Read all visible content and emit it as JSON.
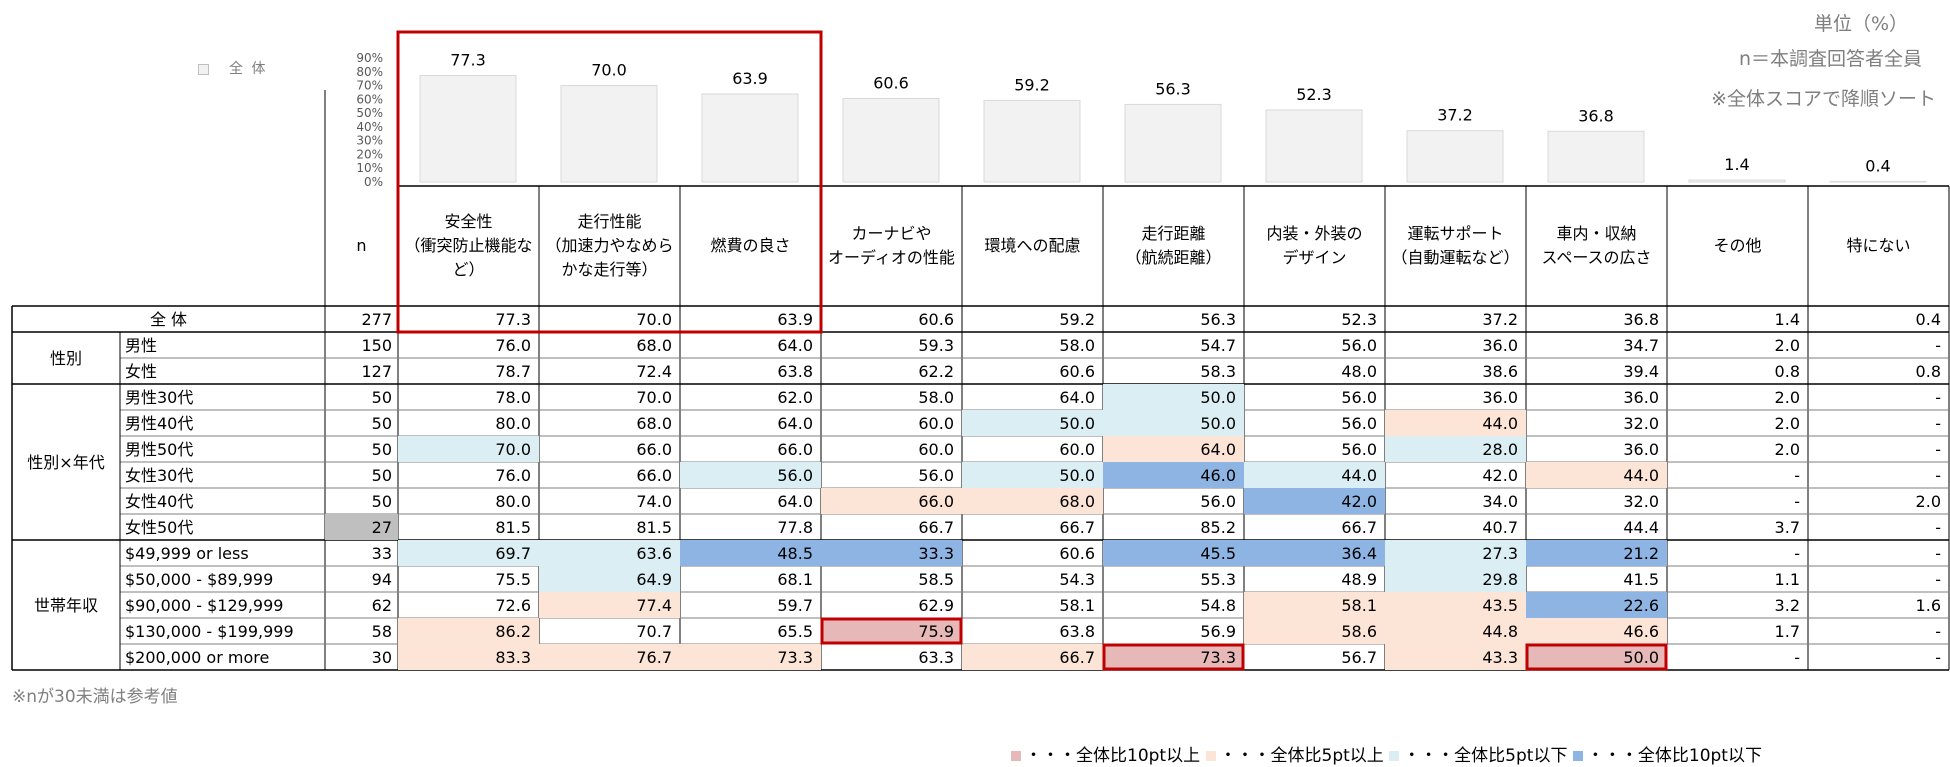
{
  "header": {
    "legend_all": "全 体",
    "unit": "単位（%）",
    "base": "n＝本調査回答者全員",
    "sort_note": "※全体スコアで降順ソート"
  },
  "footer": {
    "note": "※nが30未満は参考値",
    "legend": [
      {
        "label": "・・・全体比10pt以上",
        "color": "#e6b8b7"
      },
      {
        "label": "・・・全体比5pt以上",
        "color": "#fce4d6"
      },
      {
        "label": "・・・全体比5pt以下",
        "color": "#daeef3"
      },
      {
        "label": "・・・全体比10pt以下",
        "color": "#8eb4e3"
      }
    ]
  },
  "colors": {
    "hi10": "#e6b8b7",
    "hi5": "#fce4d6",
    "lo5": "#daeef3",
    "lo10": "#8eb4e3",
    "ref": "#bfbfbf",
    "bar": "#f2f2f2",
    "highlight_border": "#c00000"
  },
  "chart_data": {
    "type": "bar",
    "series": [
      {
        "values": [
          77.3,
          70.0,
          63.9,
          60.6,
          59.2,
          56.3,
          52.3,
          37.2,
          36.8,
          1.4,
          0.4
        ]
      }
    ],
    "value_labels": [
      "77.3",
      "70.0",
      "63.9",
      "60.6",
      "59.2",
      "56.3",
      "52.3",
      "37.2",
      "36.8",
      "1.4",
      "0.4"
    ],
    "ylim": [
      0,
      90
    ],
    "yticks": [
      "90%",
      "80%",
      "70%",
      "60%",
      "50%",
      "40%",
      "30%",
      "20%",
      "10%",
      "0%"
    ],
    "categories": [
      [
        "安全性",
        "（衝突防止機能な",
        "ど）"
      ],
      [
        "走行性能",
        "（加速力やなめら",
        "かな走行等）"
      ],
      [
        "燃費の良さ"
      ],
      [
        "カーナビや",
        "オーディオの性能"
      ],
      [
        "環境への配慮"
      ],
      [
        "走行距離",
        "（航続距離）"
      ],
      [
        "内装・外装の",
        "デザイン"
      ],
      [
        "運転サポート",
        "（自動運転など）"
      ],
      [
        "車内・収納",
        "スペースの広さ"
      ],
      [
        "その他"
      ],
      [
        "特にない"
      ]
    ],
    "n_header": "n",
    "table": {
      "rows": [
        {
          "group": "",
          "label": "全 体",
          "n": "277",
          "values": [
            "77.3",
            "70.0",
            "63.9",
            "60.6",
            "59.2",
            "56.3",
            "52.3",
            "37.2",
            "36.8",
            "1.4",
            "0.4"
          ],
          "shade": [
            "",
            "",
            "",
            "",
            "",
            "",
            "",
            "",
            "",
            "",
            ""
          ]
        },
        {
          "group": "性別",
          "label": "男性",
          "n": "150",
          "values": [
            "76.0",
            "68.0",
            "64.0",
            "59.3",
            "58.0",
            "54.7",
            "56.0",
            "36.0",
            "34.7",
            "2.0",
            "-"
          ],
          "shade": [
            "",
            "",
            "",
            "",
            "",
            "",
            "",
            "",
            "",
            "",
            ""
          ]
        },
        {
          "group": "性別",
          "label": "女性",
          "n": "127",
          "values": [
            "78.7",
            "72.4",
            "63.8",
            "62.2",
            "60.6",
            "58.3",
            "48.0",
            "38.6",
            "39.4",
            "0.8",
            "0.8"
          ],
          "shade": [
            "",
            "",
            "",
            "",
            "",
            "",
            "",
            "",
            "",
            "",
            ""
          ]
        },
        {
          "group": "性別×年代",
          "label": "男性30代",
          "n": "50",
          "values": [
            "78.0",
            "70.0",
            "62.0",
            "58.0",
            "64.0",
            "50.0",
            "56.0",
            "36.0",
            "36.0",
            "2.0",
            "-"
          ],
          "shade": [
            "",
            "",
            "",
            "",
            "",
            "lo5",
            "",
            "",
            "",
            "",
            ""
          ]
        },
        {
          "group": "性別×年代",
          "label": "男性40代",
          "n": "50",
          "values": [
            "80.0",
            "68.0",
            "64.0",
            "60.0",
            "50.0",
            "50.0",
            "56.0",
            "44.0",
            "32.0",
            "2.0",
            "-"
          ],
          "shade": [
            "",
            "",
            "",
            "",
            "lo5",
            "lo5",
            "",
            "hi5",
            "",
            "",
            ""
          ]
        },
        {
          "group": "性別×年代",
          "label": "男性50代",
          "n": "50",
          "values": [
            "70.0",
            "66.0",
            "66.0",
            "60.0",
            "60.0",
            "64.0",
            "56.0",
            "28.0",
            "36.0",
            "2.0",
            "-"
          ],
          "shade": [
            "lo5",
            "",
            "",
            "",
            "",
            "hi5",
            "",
            "lo5",
            "",
            "",
            ""
          ]
        },
        {
          "group": "性別×年代",
          "label": "女性30代",
          "n": "50",
          "values": [
            "76.0",
            "66.0",
            "56.0",
            "56.0",
            "50.0",
            "46.0",
            "44.0",
            "42.0",
            "44.0",
            "-",
            "-"
          ],
          "shade": [
            "",
            "",
            "lo5",
            "",
            "lo5",
            "lo10",
            "lo5",
            "",
            "hi5",
            "",
            ""
          ]
        },
        {
          "group": "性別×年代",
          "label": "女性40代",
          "n": "50",
          "values": [
            "80.0",
            "74.0",
            "64.0",
            "66.0",
            "68.0",
            "56.0",
            "42.0",
            "34.0",
            "32.0",
            "-",
            "2.0"
          ],
          "shade": [
            "",
            "",
            "",
            "hi5",
            "hi5",
            "",
            "lo10",
            "",
            "",
            "",
            ""
          ]
        },
        {
          "group": "性別×年代",
          "label": "女性50代",
          "n": "27",
          "values": [
            "81.5",
            "81.5",
            "77.8",
            "66.7",
            "66.7",
            "85.2",
            "66.7",
            "40.7",
            "44.4",
            "3.7",
            "-"
          ],
          "shade": [
            "",
            "",
            "",
            "",
            "",
            "",
            "",
            "",
            "",
            "",
            ""
          ],
          "n_ref": true
        },
        {
          "group": "世帯年収",
          "label": "$49,999  or  less",
          "n": "33",
          "values": [
            "69.7",
            "63.6",
            "48.5",
            "33.3",
            "60.6",
            "45.5",
            "36.4",
            "27.3",
            "21.2",
            "-",
            "-"
          ],
          "shade": [
            "lo5",
            "lo5",
            "lo10",
            "lo10",
            "",
            "lo10",
            "lo10",
            "lo5",
            "lo10",
            "",
            ""
          ]
        },
        {
          "group": "世帯年収",
          "label": "$50,000  -  $89,999",
          "n": "94",
          "values": [
            "75.5",
            "64.9",
            "68.1",
            "58.5",
            "54.3",
            "55.3",
            "48.9",
            "29.8",
            "41.5",
            "1.1",
            "-"
          ],
          "shade": [
            "",
            "lo5",
            "",
            "",
            "",
            "",
            "",
            "lo5",
            "",
            "",
            ""
          ]
        },
        {
          "group": "世帯年収",
          "label": "$90,000  -  $129,999",
          "n": "62",
          "values": [
            "72.6",
            "77.4",
            "59.7",
            "62.9",
            "58.1",
            "54.8",
            "58.1",
            "43.5",
            "22.6",
            "3.2",
            "1.6"
          ],
          "shade": [
            "",
            "hi5",
            "",
            "",
            "",
            "",
            "hi5",
            "hi5",
            "lo10",
            "",
            ""
          ]
        },
        {
          "group": "世帯年収",
          "label": "$130,000  -  $199,999",
          "n": "58",
          "values": [
            "86.2",
            "70.7",
            "65.5",
            "75.9",
            "63.8",
            "56.9",
            "58.6",
            "44.8",
            "46.6",
            "1.7",
            "-"
          ],
          "shade": [
            "hi5",
            "",
            "",
            "hi10",
            "",
            "",
            "hi5",
            "hi5",
            "hi5",
            "",
            ""
          ]
        },
        {
          "group": "世帯年収",
          "label": "$200,000  or  more",
          "n": "30",
          "values": [
            "83.3",
            "76.7",
            "73.3",
            "63.3",
            "66.7",
            "73.3",
            "56.7",
            "43.3",
            "50.0",
            "-",
            "-"
          ],
          "shade": [
            "hi5",
            "hi5",
            "hi5",
            "",
            "hi5",
            "hi10",
            "",
            "hi5",
            "hi10",
            "",
            ""
          ]
        }
      ],
      "groups": [
        {
          "label": "性別",
          "start": 1,
          "end": 2
        },
        {
          "label": "性別×年代",
          "start": 3,
          "end": 8
        },
        {
          "label": "世帯年収",
          "start": 9,
          "end": 13
        }
      ],
      "highlight_cells": [
        [
          12,
          3
        ],
        [
          13,
          5
        ],
        [
          13,
          8
        ]
      ]
    }
  }
}
